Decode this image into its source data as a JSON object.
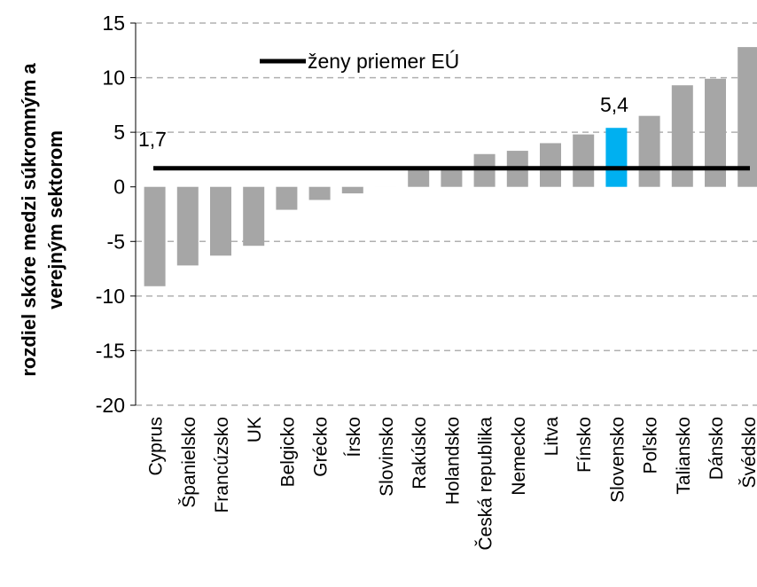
{
  "chart_data": {
    "type": "bar",
    "ylabel": "rozdiel skóre medzi súkromným a verejným sektorom",
    "ylabel_lines": [
      "rozdiel skóre medzi súkromným a",
      "verejným sektorom"
    ],
    "ylim": [
      -20,
      15
    ],
    "yticks": [
      15,
      10,
      5,
      0,
      -5,
      -10,
      -15,
      -20
    ],
    "ytick_labels": [
      "15",
      "10",
      "5",
      "0",
      "-5",
      "-10",
      "-15",
      "-20"
    ],
    "grid": true,
    "categories": [
      "Cyprus",
      "Španielsko",
      "Francúzsko",
      "UK",
      "Belgicko",
      "Grécko",
      "Írsko",
      "Slovinsko",
      "Rakúsko",
      "Holandsko",
      "Česká republika",
      "Nemecko",
      "Litva",
      "Fínsko",
      "Slovensko",
      "Poľsko",
      "Taliansko",
      "Dánsko",
      "Švédsko"
    ],
    "values": [
      -9.1,
      -7.2,
      -6.3,
      -5.4,
      -2.1,
      -1.2,
      -0.6,
      0.0,
      1.6,
      1.6,
      3.0,
      3.3,
      4.0,
      4.8,
      5.4,
      6.5,
      9.3,
      9.9,
      12.8
    ],
    "bar_color": "#a6a6a6",
    "highlight_category": "Slovensko",
    "highlight_color": "#00b0f0",
    "reference_line": {
      "name": "ženy priemer EÚ",
      "value": 1.7,
      "color": "#000000"
    },
    "legend_position": "top-center",
    "annotations": [
      {
        "text": "1,7",
        "target": "reference_line"
      },
      {
        "text": "5,4",
        "target": "Slovensko"
      }
    ]
  }
}
